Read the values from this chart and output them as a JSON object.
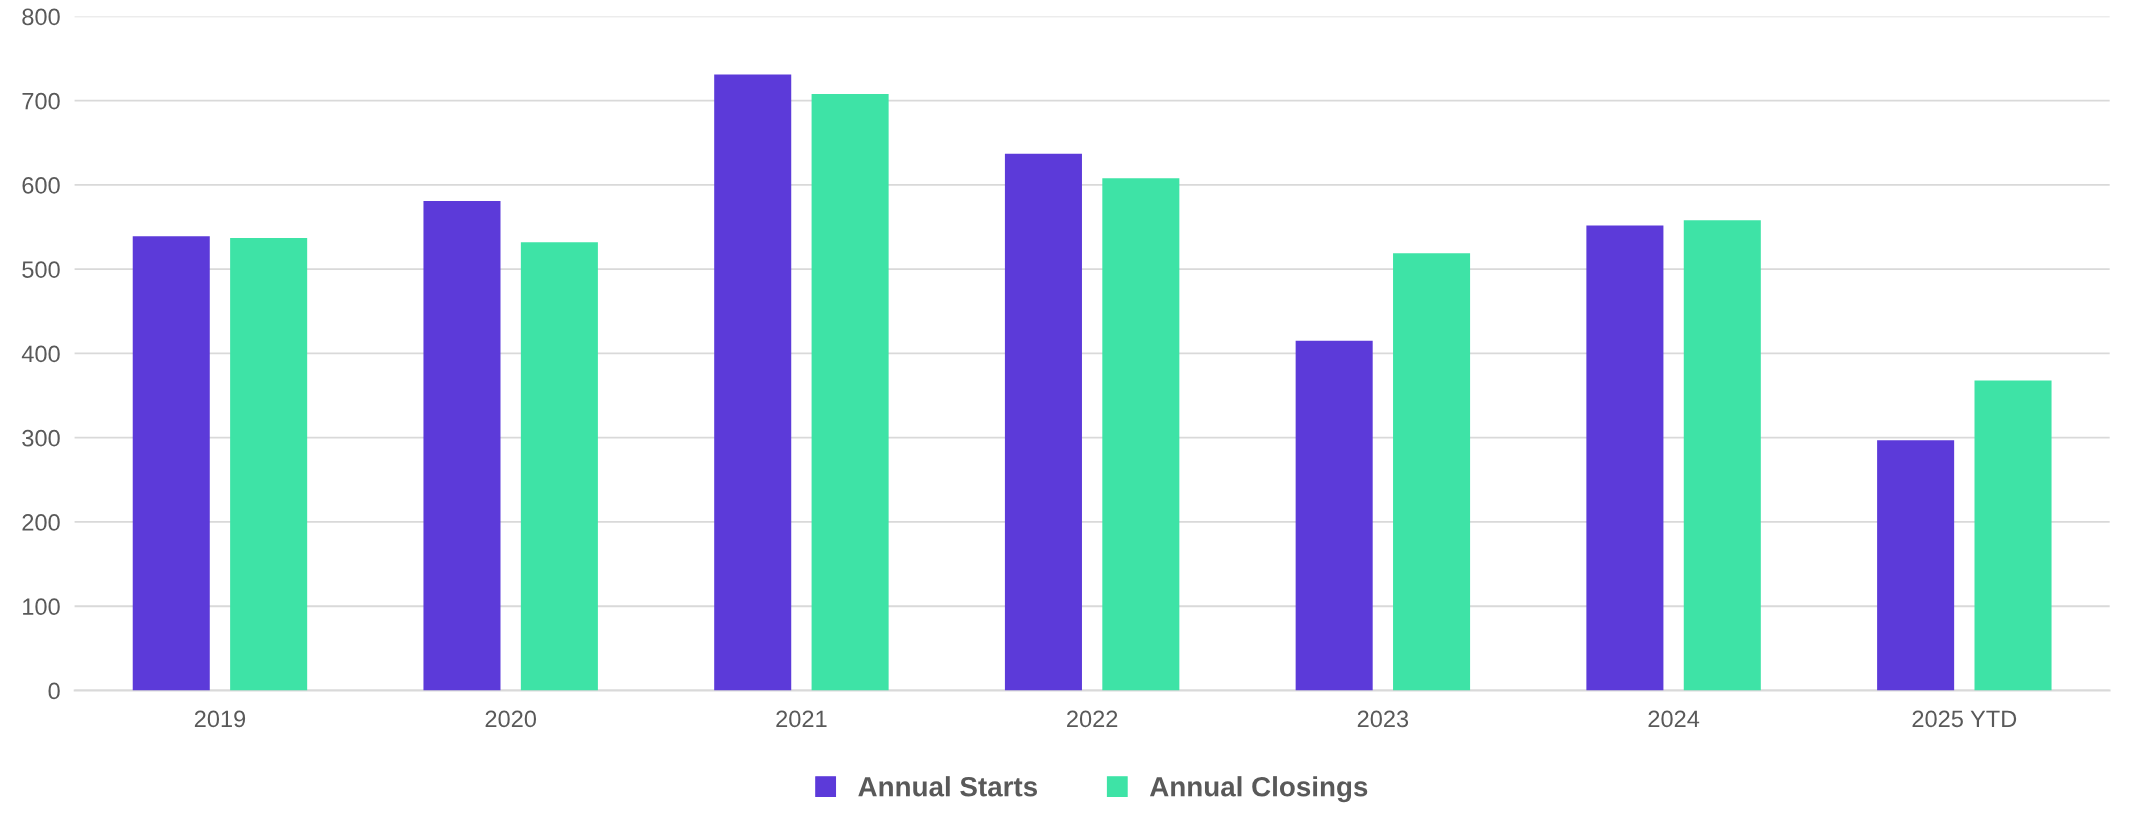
{
  "chart_data": {
    "type": "bar",
    "categories": [
      "2019",
      "2020",
      "2021",
      "2022",
      "2023",
      "2024",
      "2025 YTD"
    ],
    "series": [
      {
        "name": "Annual Starts",
        "color": "#5c3ad9",
        "values": [
          539,
          581,
          731,
          637,
          415,
          552,
          297
        ]
      },
      {
        "name": "Annual Closings",
        "color": "#3ee3a6",
        "values": [
          537,
          532,
          708,
          608,
          519,
          558,
          368
        ]
      }
    ],
    "ylim": [
      0,
      800
    ],
    "yticks": [
      0,
      100,
      200,
      300,
      400,
      500,
      600,
      700,
      800
    ],
    "grid": "y",
    "legend": "bottom"
  }
}
